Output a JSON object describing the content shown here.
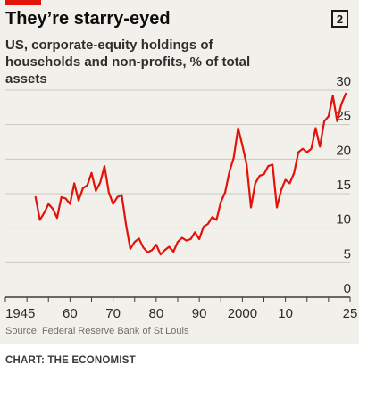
{
  "header": {
    "title": "They’re starry-eyed",
    "badge": "2",
    "subtitle": "US, corporate-equity holdings of households and non-profits, % of total assets"
  },
  "footer": {
    "source": "Source: Federal Reserve Bank of St Louis",
    "credit": "CHART: THE ECONOMIST"
  },
  "colors": {
    "line": "#e3120b",
    "grid": "#c8c8c0",
    "axis": "#3b3b3b",
    "text": "#2b2b2b",
    "panel": "#f2f0ea"
  },
  "chart_data": {
    "type": "line",
    "title": "They’re starry-eyed",
    "subtitle": "US, corporate-equity holdings of households and non-profits, % of total assets",
    "xlabel": "",
    "ylabel": "",
    "xlim": [
      1945,
      2025
    ],
    "ylim": [
      0,
      30
    ],
    "x_ticks": [
      1945,
      1950,
      1955,
      1960,
      1965,
      1970,
      1975,
      1980,
      1985,
      1990,
      1995,
      2000,
      2005,
      2010,
      2015,
      2020,
      2025
    ],
    "x_tick_labels": [
      {
        "x": 1945,
        "label": "1945"
      },
      {
        "x": 1960,
        "label": "60"
      },
      {
        "x": 1970,
        "label": "70"
      },
      {
        "x": 1980,
        "label": "80"
      },
      {
        "x": 1990,
        "label": "90"
      },
      {
        "x": 2000,
        "label": "2000"
      },
      {
        "x": 2010,
        "label": "10"
      },
      {
        "x": 2025,
        "label": "25"
      }
    ],
    "y_ticks": [
      0,
      5,
      10,
      15,
      20,
      25,
      30
    ],
    "y_tick_labels": [
      "0",
      "5",
      "10",
      "15",
      "20",
      "25",
      "30"
    ],
    "grid": true,
    "series": [
      {
        "values": [
          [
            1952,
            14.5
          ],
          [
            1953,
            11.2
          ],
          [
            1954,
            12.2
          ],
          [
            1955,
            13.5
          ],
          [
            1956,
            12.8
          ],
          [
            1957,
            11.5
          ],
          [
            1958,
            14.5
          ],
          [
            1959,
            14.3
          ],
          [
            1960,
            13.5
          ],
          [
            1961,
            16.5
          ],
          [
            1962,
            14.0
          ],
          [
            1963,
            15.8
          ],
          [
            1964,
            16.2
          ],
          [
            1965,
            18.0
          ],
          [
            1966,
            15.4
          ],
          [
            1967,
            16.6
          ],
          [
            1968,
            19.0
          ],
          [
            1969,
            15.2
          ],
          [
            1970,
            13.5
          ],
          [
            1971,
            14.5
          ],
          [
            1972,
            14.8
          ],
          [
            1973,
            10.5
          ],
          [
            1974,
            7.0
          ],
          [
            1975,
            8.0
          ],
          [
            1976,
            8.5
          ],
          [
            1977,
            7.2
          ],
          [
            1978,
            6.5
          ],
          [
            1979,
            6.8
          ],
          [
            1980,
            7.6
          ],
          [
            1981,
            6.2
          ],
          [
            1982,
            6.8
          ],
          [
            1983,
            7.3
          ],
          [
            1984,
            6.6
          ],
          [
            1985,
            8.0
          ],
          [
            1986,
            8.6
          ],
          [
            1987,
            8.2
          ],
          [
            1988,
            8.4
          ],
          [
            1989,
            9.4
          ],
          [
            1990,
            8.4
          ],
          [
            1991,
            10.2
          ],
          [
            1992,
            10.6
          ],
          [
            1993,
            11.6
          ],
          [
            1994,
            11.2
          ],
          [
            1995,
            13.8
          ],
          [
            1996,
            15.2
          ],
          [
            1997,
            18.2
          ],
          [
            1998,
            20.2
          ],
          [
            1999,
            24.5
          ],
          [
            2000,
            22.0
          ],
          [
            2001,
            19.2
          ],
          [
            2002,
            13.0
          ],
          [
            2003,
            16.5
          ],
          [
            2004,
            17.6
          ],
          [
            2005,
            17.8
          ],
          [
            2006,
            19.0
          ],
          [
            2007,
            19.2
          ],
          [
            2008,
            13.0
          ],
          [
            2009,
            15.5
          ],
          [
            2010,
            17.0
          ],
          [
            2011,
            16.5
          ],
          [
            2012,
            18.0
          ],
          [
            2013,
            21.0
          ],
          [
            2014,
            21.5
          ],
          [
            2015,
            21.0
          ],
          [
            2016,
            21.5
          ],
          [
            2017,
            24.5
          ],
          [
            2018,
            21.8
          ],
          [
            2019,
            25.5
          ],
          [
            2020,
            26.2
          ],
          [
            2021,
            29.2
          ],
          [
            2022,
            25.5
          ],
          [
            2023,
            28.0
          ],
          [
            2024,
            29.5
          ]
        ]
      }
    ]
  }
}
